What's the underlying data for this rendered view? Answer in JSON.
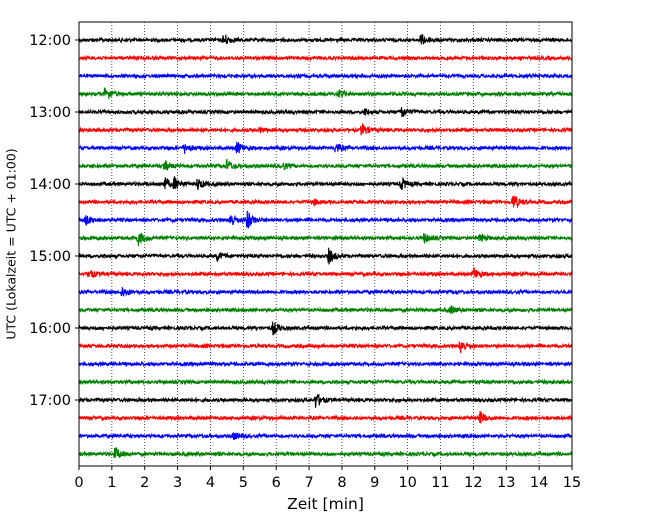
{
  "chart_data": {
    "type": "line",
    "title": "",
    "xlabel": "Zeit  [min]",
    "ylabel": "UTC (Lokalzeit = UTC + 01:00)",
    "xlim": [
      0,
      15
    ],
    "x_ticks": [
      0,
      1,
      2,
      3,
      4,
      5,
      6,
      7,
      8,
      9,
      10,
      11,
      12,
      13,
      14,
      15
    ],
    "x_tick_labels": [
      "0",
      "1",
      "2",
      "3",
      "4",
      "5",
      "6",
      "7",
      "8",
      "9",
      "10",
      "11",
      "12",
      "13",
      "14",
      "15"
    ],
    "y_tick_labels": [
      "12:00",
      "13:00",
      "14:00",
      "15:00",
      "16:00",
      "17:00"
    ],
    "grid": "vertical dotted at each minute",
    "trace_interval_minutes": 15,
    "start_time_utc": "12:00",
    "trace_colors": [
      "#000000",
      "#ff0000",
      "#0000ff",
      "#008000"
    ],
    "traces": [
      {
        "start": "12:00",
        "color": "#000000",
        "events": [
          {
            "t": 4.4,
            "a": 1.0
          },
          {
            "t": 10.4,
            "a": 0.9
          }
        ]
      },
      {
        "start": "12:15",
        "color": "#ff0000",
        "events": []
      },
      {
        "start": "12:30",
        "color": "#0000ff",
        "events": []
      },
      {
        "start": "12:45",
        "color": "#008000",
        "events": [
          {
            "t": 0.8,
            "a": 1.2
          },
          {
            "t": 7.9,
            "a": 0.6
          }
        ]
      },
      {
        "start": "13:00",
        "color": "#000000",
        "events": [
          {
            "t": 9.8,
            "a": 1.0
          },
          {
            "t": 8.7,
            "a": 0.5
          }
        ]
      },
      {
        "start": "13:15",
        "color": "#ff0000",
        "events": [
          {
            "t": 8.6,
            "a": 1.0
          },
          {
            "t": 5.5,
            "a": 0.4
          }
        ]
      },
      {
        "start": "13:30",
        "color": "#0000ff",
        "events": [
          {
            "t": 3.2,
            "a": 0.8
          },
          {
            "t": 4.8,
            "a": 1.0
          },
          {
            "t": 7.8,
            "a": 0.8
          }
        ]
      },
      {
        "start": "13:45",
        "color": "#008000",
        "events": [
          {
            "t": 2.6,
            "a": 0.8
          },
          {
            "t": 4.5,
            "a": 0.9
          },
          {
            "t": 6.2,
            "a": 0.5
          }
        ]
      },
      {
        "start": "14:00",
        "color": "#000000",
        "events": [
          {
            "t": 2.6,
            "a": 1.0
          },
          {
            "t": 2.9,
            "a": 0.9
          },
          {
            "t": 3.6,
            "a": 0.9
          },
          {
            "t": 9.8,
            "a": 1.0
          }
        ]
      },
      {
        "start": "14:15",
        "color": "#ff0000",
        "events": [
          {
            "t": 13.2,
            "a": 1.3
          },
          {
            "t": 7.1,
            "a": 0.5
          }
        ]
      },
      {
        "start": "14:30",
        "color": "#0000ff",
        "events": [
          {
            "t": 0.2,
            "a": 0.8
          },
          {
            "t": 4.6,
            "a": 1.2
          },
          {
            "t": 5.1,
            "a": 1.6
          }
        ]
      },
      {
        "start": "14:45",
        "color": "#008000",
        "events": [
          {
            "t": 1.8,
            "a": 1.1
          },
          {
            "t": 10.5,
            "a": 0.7
          },
          {
            "t": 12.2,
            "a": 0.7
          }
        ]
      },
      {
        "start": "15:00",
        "color": "#000000",
        "events": [
          {
            "t": 4.2,
            "a": 0.7
          },
          {
            "t": 7.6,
            "a": 1.2
          }
        ]
      },
      {
        "start": "15:15",
        "color": "#ff0000",
        "events": [
          {
            "t": 0.3,
            "a": 0.7
          },
          {
            "t": 12.0,
            "a": 1.0
          }
        ]
      },
      {
        "start": "15:30",
        "color": "#0000ff",
        "events": [
          {
            "t": 1.3,
            "a": 0.9
          }
        ]
      },
      {
        "start": "15:45",
        "color": "#008000",
        "events": [
          {
            "t": 11.3,
            "a": 0.6
          }
        ]
      },
      {
        "start": "16:00",
        "color": "#000000",
        "events": [
          {
            "t": 5.9,
            "a": 1.0
          }
        ]
      },
      {
        "start": "16:15",
        "color": "#ff0000",
        "events": [
          {
            "t": 11.6,
            "a": 1.2
          }
        ]
      },
      {
        "start": "16:30",
        "color": "#0000ff",
        "events": []
      },
      {
        "start": "16:45",
        "color": "#008000",
        "events": []
      },
      {
        "start": "17:00",
        "color": "#000000",
        "events": [
          {
            "t": 7.2,
            "a": 1.2
          }
        ]
      },
      {
        "start": "17:15",
        "color": "#ff0000",
        "events": [
          {
            "t": 12.2,
            "a": 0.9
          }
        ]
      },
      {
        "start": "17:30",
        "color": "#0000ff",
        "events": [
          {
            "t": 4.7,
            "a": 0.5
          }
        ]
      },
      {
        "start": "17:45",
        "color": "#008000",
        "events": [
          {
            "t": 1.1,
            "a": 1.1
          }
        ]
      }
    ]
  }
}
